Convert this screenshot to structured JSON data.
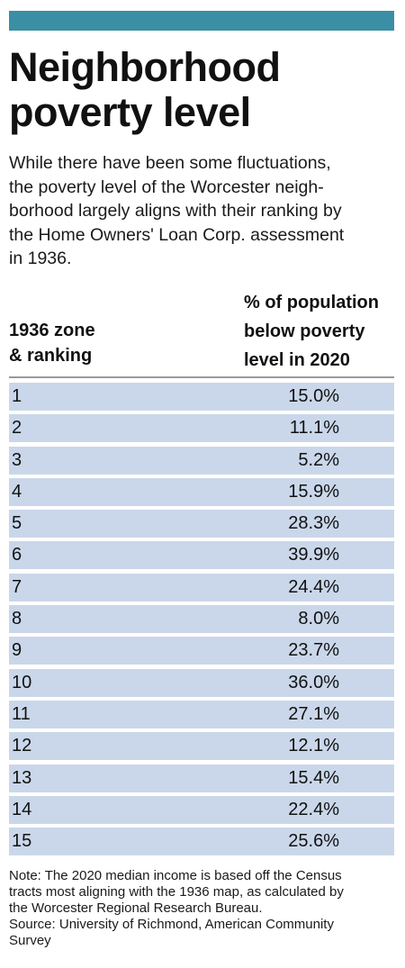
{
  "header_color": "#3a8fa4",
  "row_color": "#cad7ea",
  "title_line1": "Neighborhood",
  "title_line2": "poverty level",
  "subtitle_lines": [
    "While there have been some fluctuations,",
    "the poverty level of the Worcester neigh-",
    "borhood largely aligns with their ranking by",
    "the Home Owners' Loan Corp. assessment",
    "in 1936."
  ],
  "col1_header_lines": [
    "1936 zone",
    "& ranking"
  ],
  "col2_header_lines": [
    "% of population",
    "below poverty",
    "level in 2020"
  ],
  "chart_data": {
    "type": "table",
    "columns": [
      "1936 zone & ranking",
      "% of population below poverty level in 2020"
    ],
    "rows": [
      {
        "zone": "1",
        "value": "15.0%"
      },
      {
        "zone": "2",
        "value": "11.1%"
      },
      {
        "zone": "3",
        "value": "5.2%"
      },
      {
        "zone": "4",
        "value": "15.9%"
      },
      {
        "zone": "5",
        "value": "28.3%"
      },
      {
        "zone": "6",
        "value": "39.9%"
      },
      {
        "zone": "7",
        "value": "24.4%"
      },
      {
        "zone": "8",
        "value": "8.0%"
      },
      {
        "zone": "9",
        "value": "23.7%"
      },
      {
        "zone": "10",
        "value": "36.0%"
      },
      {
        "zone": "11",
        "value": "27.1%"
      },
      {
        "zone": "12",
        "value": "12.1%"
      },
      {
        "zone": "13",
        "value": "15.4%"
      },
      {
        "zone": "14",
        "value": "22.4%"
      },
      {
        "zone": "15",
        "value": "25.6%"
      }
    ]
  },
  "note_lines": [
    "Note: The 2020 median income is based off the Census",
    "tracts most aligning with the 1936 map, as calculated by",
    "the Worcester Regional Research Bureau.",
    "Source: University of Richmond, American Community",
    "Survey"
  ]
}
